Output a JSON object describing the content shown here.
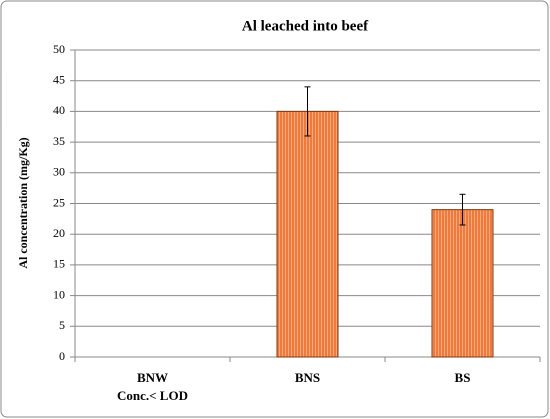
{
  "chart_data": {
    "type": "bar",
    "title": "Al leached into beef",
    "y_label": "Al concentration (mg/Kg)",
    "categories": [
      "BNW",
      "BNS",
      "BS"
    ],
    "annotations": [
      "Conc.< LOD"
    ],
    "values": [
      null,
      40,
      24
    ],
    "errors": [
      null,
      4,
      2.5
    ],
    "color": "#f07a3a",
    "ylim": [
      0,
      50
    ],
    "yticks": [
      0,
      5,
      10,
      15,
      20,
      25,
      30,
      35,
      40,
      45,
      50
    ],
    "grid": true
  }
}
